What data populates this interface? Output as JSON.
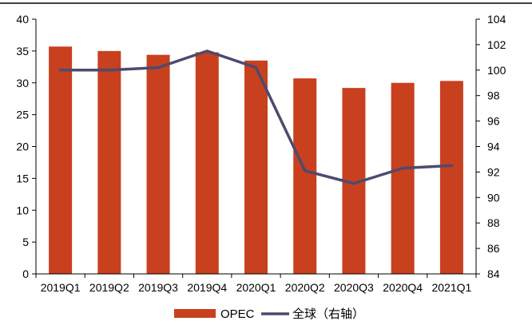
{
  "chart_data": {
    "type": "bar",
    "categories": [
      "2019Q1",
      "2019Q2",
      "2019Q3",
      "2019Q4",
      "2020Q1",
      "2020Q2",
      "2020Q3",
      "2020Q4",
      "2021Q1"
    ],
    "series": [
      {
        "name": "OPEC",
        "type": "bar",
        "axis": "left",
        "color": "#C8401E",
        "values": [
          35.7,
          35.0,
          34.4,
          34.8,
          33.5,
          30.7,
          29.2,
          30.0,
          30.3
        ]
      },
      {
        "name": "全球（右轴）",
        "type": "line",
        "axis": "right",
        "color": "#4E4A6E",
        "values": [
          100.0,
          100.0,
          100.2,
          101.5,
          100.2,
          92.1,
          91.1,
          92.3,
          92.5
        ]
      }
    ],
    "y_left": {
      "min": 0,
      "max": 40,
      "step": 5,
      "ticks": [
        "0",
        "5",
        "10",
        "15",
        "20",
        "25",
        "30",
        "35",
        "40"
      ]
    },
    "y_right": {
      "min": 84,
      "max": 104,
      "step": 2,
      "ticks": [
        "84",
        "86",
        "88",
        "90",
        "92",
        "94",
        "96",
        "98",
        "100",
        "102",
        "104"
      ]
    },
    "title": "",
    "xlabel": "",
    "ylabel": "",
    "grid": false,
    "legend_position": "bottom-center",
    "top_border": true
  }
}
